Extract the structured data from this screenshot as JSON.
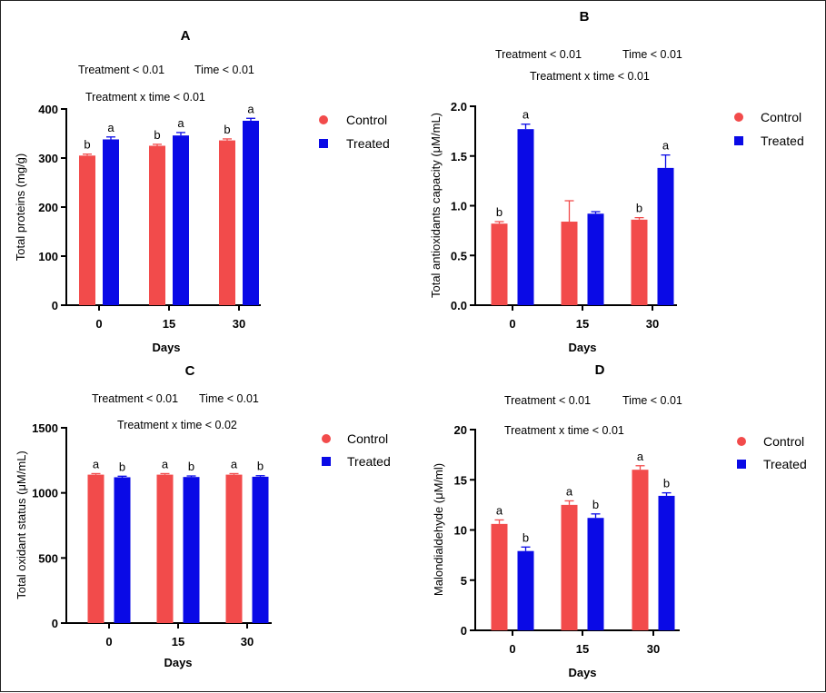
{
  "colors": {
    "control": "#f24b4b",
    "treated": "#0a0ae6",
    "axis": "#000000"
  },
  "chart_data": [
    {
      "type": "bar",
      "panel_label": "A",
      "stats": [
        "Treatment < 0.01",
        "Time < 0.01",
        "Treatment x time < 0.01"
      ],
      "categories": [
        "0",
        "15",
        "30"
      ],
      "xlabel": "Days",
      "ylabel": "Total proteins (mg/g)",
      "ylim": [
        0,
        400
      ],
      "yticks": [
        "0",
        "100",
        "200",
        "300",
        "400"
      ],
      "series": [
        {
          "name": "Control",
          "values": [
            305,
            325,
            336
          ],
          "errors": [
            3,
            3,
            3
          ],
          "letters": [
            "b",
            "b",
            "b"
          ]
        },
        {
          "name": "Treated",
          "values": [
            338,
            346,
            376
          ],
          "errors": [
            5,
            6,
            5
          ],
          "letters": [
            "a",
            "a",
            "a"
          ]
        }
      ],
      "legend": "right"
    },
    {
      "type": "bar",
      "panel_label": "B",
      "stats": [
        "Treatment < 0.01",
        "Time < 0.01",
        "Treatment x time < 0.01"
      ],
      "categories": [
        "0",
        "15",
        "30"
      ],
      "xlabel": "Days",
      "ylabel": "Total antioxidants capacity (μM/mL)",
      "ylim": [
        0,
        2.0
      ],
      "yticks": [
        "0.0",
        "0.5",
        "1.0",
        "1.5",
        "2.0"
      ],
      "series": [
        {
          "name": "Control",
          "values": [
            0.82,
            0.84,
            0.86
          ],
          "errors": [
            0.02,
            0.21,
            0.02
          ],
          "letters": [
            "b",
            "",
            "b"
          ]
        },
        {
          "name": "Treated",
          "values": [
            1.77,
            0.92,
            1.38
          ],
          "errors": [
            0.05,
            0.02,
            0.13
          ],
          "letters": [
            "a",
            "",
            "a"
          ]
        }
      ],
      "legend": "right"
    },
    {
      "type": "bar",
      "panel_label": "C",
      "stats": [
        "Treatment < 0.01",
        "Time < 0.01",
        "Treatment x time < 0.02"
      ],
      "categories": [
        "0",
        "15",
        "30"
      ],
      "xlabel": "Days",
      "ylabel": "Total oxidant status (μM/mL)",
      "ylim": [
        0,
        1500
      ],
      "yticks": [
        "0",
        "500",
        "1000",
        "1500"
      ],
      "series": [
        {
          "name": "Control",
          "values": [
            1140,
            1140,
            1140
          ],
          "errors": [
            8,
            8,
            8
          ],
          "letters": [
            "a",
            "a",
            "a"
          ]
        },
        {
          "name": "Treated",
          "values": [
            1120,
            1122,
            1124
          ],
          "errors": [
            8,
            8,
            8
          ],
          "letters": [
            "b",
            "b",
            "b"
          ]
        }
      ],
      "legend": "right"
    },
    {
      "type": "bar",
      "panel_label": "D",
      "stats": [
        "Treatment < 0.01",
        "Time < 0.01",
        "Treatment x time < 0.01"
      ],
      "categories": [
        "0",
        "15",
        "30"
      ],
      "xlabel": "Days",
      "ylabel": "Malondialdehyde (μM/ml)",
      "ylim": [
        0,
        20
      ],
      "yticks": [
        "0",
        "5",
        "10",
        "15",
        "20"
      ],
      "series": [
        {
          "name": "Control",
          "values": [
            10.6,
            12.5,
            16.0
          ],
          "errors": [
            0.4,
            0.4,
            0.4
          ],
          "letters": [
            "a",
            "a",
            "a"
          ]
        },
        {
          "name": "Treated",
          "values": [
            7.9,
            11.2,
            13.4
          ],
          "errors": [
            0.4,
            0.4,
            0.3
          ],
          "letters": [
            "b",
            "b",
            "b"
          ]
        }
      ],
      "legend": "right"
    }
  ]
}
